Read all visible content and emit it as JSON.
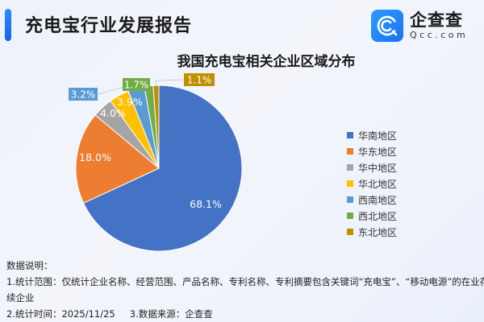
{
  "header": {
    "title": "充电宝行业发展报告",
    "accent_color": "#1a73f0",
    "logo": {
      "icon": "qcc-logo-icon",
      "name_cn": "企查查",
      "name_en": "Qcc.com"
    }
  },
  "chart_data": {
    "type": "pie",
    "title": "我国充电宝相关企业区域分布",
    "categories": [
      "华南地区",
      "华东地区",
      "华中地区",
      "华北地区",
      "西南地区",
      "西北地区",
      "东北地区"
    ],
    "values": [
      68.1,
      18.0,
      4.0,
      3.9,
      3.2,
      1.7,
      1.1
    ],
    "value_labels": [
      "68.1%",
      "18.0%",
      "4.0%",
      "3.9%",
      "3.2%",
      "1.7%",
      "1.1%"
    ],
    "colors": [
      "#4472c4",
      "#ed7d31",
      "#a5a5a5",
      "#ffc000",
      "#5b9bd5",
      "#70ad47",
      "#c09000"
    ],
    "unit": "%",
    "start_angle": "12 o'clock, clockwise",
    "legend_position": "right"
  },
  "legend": {
    "items": [
      {
        "label": "华南地区",
        "color": "#4472c4"
      },
      {
        "label": "华东地区",
        "color": "#ed7d31"
      },
      {
        "label": "华中地区",
        "color": "#a5a5a5"
      },
      {
        "label": "华北地区",
        "color": "#ffc000"
      },
      {
        "label": "西南地区",
        "color": "#5b9bd5"
      },
      {
        "label": "西北地区",
        "color": "#70ad47"
      },
      {
        "label": "东北地区",
        "color": "#c09000"
      }
    ]
  },
  "notes": {
    "heading": "数据说明：",
    "line1": "1.统计范围：仅统计企业名称、经营范围、产品名称、专利名称、专利摘要包含关键词“充电宝”、“移动电源”的在业存",
    "line1_cont": "续企业",
    "line2a": "2.统计时间：2025/11/25",
    "line2b": "3.数据来源：企查查"
  }
}
